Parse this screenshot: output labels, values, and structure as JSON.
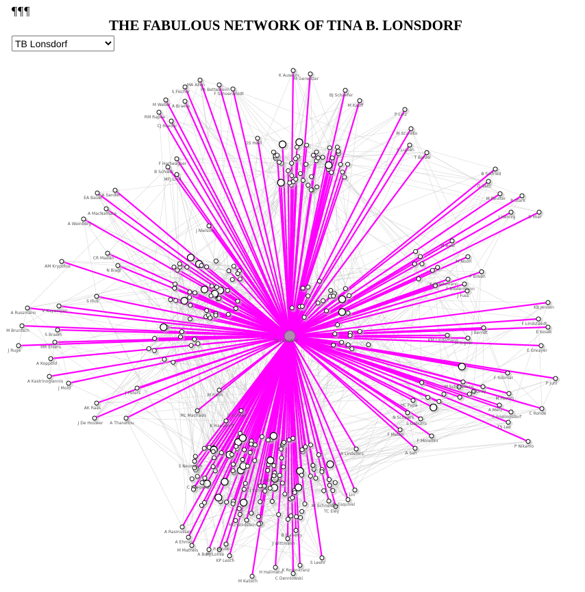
{
  "header": {
    "pilcrows": "¶¶¶",
    "title": "THE FABULOUS NETWORK OF TINA B. LONSDORF"
  },
  "selector": {
    "selected": "TB Lonsdorf",
    "options": [
      "TB Lonsdorf"
    ]
  },
  "colors": {
    "highlight": "#ff00ff",
    "edge": "#c8c8c8",
    "center": "#b08ab0"
  },
  "network": {
    "center": "TB Lonsdorf",
    "nodes": [
      "K Auseurs",
      "M Gerwitzer",
      "BJ Schaefer",
      "M Kauff",
      "MA Allen",
      "PA Bettelheim",
      "S Fischer",
      "F Schoenbrodt",
      "M Weber",
      "A Braess",
      "RM Rapee",
      "CJ Roeder",
      "GS Held",
      "P Lutz",
      "M Scarello",
      "S Lupien",
      "T Balder",
      "F Hartwagner",
      "B Schiedl",
      "MFJ Lind",
      "A Sander",
      "EA Bauer",
      "A MacNamara",
      "A Weinberg",
      "J Nielson",
      "B Seifried",
      "D Vatti",
      "M Reulter",
      "R Stark",
      "J Hennig",
      "D Mier",
      "AM Krypotos",
      "CR Madan",
      "N Biagi",
      "M Auer",
      "M Noori",
      "P Bilken",
      "K Wiedemann",
      "F Biedermann",
      "J Fuss",
      "S Illus",
      "V Kayaniyan",
      "A Russmann",
      "M Bruntsch",
      "S Braem",
      "MR Ehlers",
      "J Ruge",
      "A Koppold",
      "A Kastrinogiannis",
      "J Mold",
      "KB Jensen",
      "F Lindstaedt",
      "E Kosek",
      "J Berndt",
      "M Ingvar",
      "E Greayer",
      "KM Lindemann",
      "F Solimar",
      "P Juhl",
      "M Schellekens",
      "D Gray",
      "M Hamm",
      "A Merz",
      "F Frielingsdorf",
      "C Rohde",
      "FS Lee",
      "P Nikamo",
      "AK Raas",
      "J De Houwer",
      "A Thanellou",
      "J Peters",
      "ML Machado",
      "M Rahn",
      "D Schiller",
      "K Hausdorff",
      "HC Papa",
      "N Schwerk",
      "S Gaburro",
      "F Metter",
      "F Morellini",
      "A Sah",
      "S Neumann",
      "C Wiegand",
      "R Lindefors",
      "TC Eley",
      "KJ Schneider",
      "M Esquivel",
      "J Lin",
      "MG Goldstein",
      "B Flaherty",
      "J Wittmann",
      "A Rasmussen",
      "A Ehman",
      "M Matheis",
      "A Bohn",
      "MJ Lohse",
      "R Binder",
      "KP Lesch",
      "M Kalisch",
      "H Hallmann",
      "C Dennlowski",
      "K Rosenkranz",
      "S Leehr",
      "I Kuhn",
      "A Wollmer",
      "TB Lonsdorf"
    ]
  }
}
